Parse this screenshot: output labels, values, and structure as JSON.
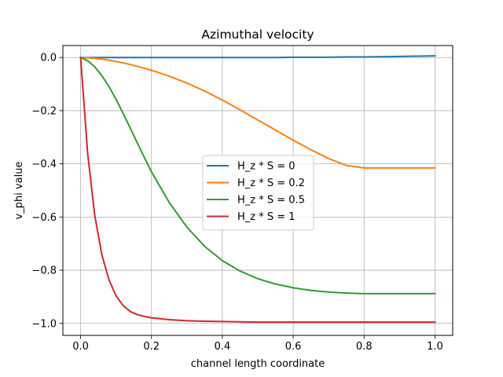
{
  "chart_data": {
    "type": "line",
    "title": "Azimuthal velocity",
    "xlabel": "channel length coordinate",
    "ylabel": "v_phi value",
    "xlim": [
      -0.05,
      1.05
    ],
    "ylim": [
      -1.045,
      0.045
    ],
    "xticks": [
      0.0,
      0.2,
      0.4,
      0.6,
      0.8,
      1.0
    ],
    "xtick_labels": [
      "0.0",
      "0.2",
      "0.4",
      "0.6",
      "0.8",
      "1.0"
    ],
    "yticks": [
      0.0,
      -0.2,
      -0.4,
      -0.6,
      -0.8,
      -1.0
    ],
    "ytick_labels": [
      "0.0",
      "−0.2",
      "−0.4",
      "−0.6",
      "−0.8",
      "−1.0"
    ],
    "grid": true,
    "legend_position": "center",
    "x": [
      0.0,
      0.02,
      0.04,
      0.06,
      0.08,
      0.1,
      0.12,
      0.14,
      0.16,
      0.18,
      0.2,
      0.25,
      0.3,
      0.35,
      0.4,
      0.45,
      0.5,
      0.55,
      0.6,
      0.65,
      0.7,
      0.75,
      0.8,
      0.85,
      0.9,
      0.95,
      1.0
    ],
    "series": [
      {
        "name": "H_z * S = 0",
        "color": "#1f77b4",
        "values": [
          0.0,
          0.0,
          0.0,
          0.0,
          0.0,
          0.0,
          0.0,
          0.0,
          0.0,
          0.0,
          0.0,
          0.0,
          0.0,
          0.0,
          0.0,
          0.0,
          0.0,
          0.0,
          0.001,
          0.001,
          0.001,
          0.002,
          0.002,
          0.003,
          0.004,
          0.005,
          0.006
        ]
      },
      {
        "name": "H_z * S = 0.2",
        "color": "#ff7f0e",
        "values": [
          0.0,
          -0.001,
          -0.003,
          -0.006,
          -0.01,
          -0.015,
          -0.02,
          -0.026,
          -0.033,
          -0.04,
          -0.048,
          -0.07,
          -0.096,
          -0.126,
          -0.16,
          -0.197,
          -0.235,
          -0.273,
          -0.311,
          -0.347,
          -0.38,
          -0.406,
          -0.415,
          -0.415,
          -0.415,
          -0.415,
          -0.415
        ]
      },
      {
        "name": "H_z * S = 0.5",
        "color": "#2ca02c",
        "values": [
          0.0,
          -0.012,
          -0.035,
          -0.068,
          -0.109,
          -0.157,
          -0.21,
          -0.265,
          -0.321,
          -0.376,
          -0.43,
          -0.545,
          -0.638,
          -0.71,
          -0.764,
          -0.803,
          -0.832,
          -0.852,
          -0.866,
          -0.876,
          -0.882,
          -0.886,
          -0.888,
          -0.888,
          -0.888,
          -0.888,
          -0.888
        ]
      },
      {
        "name": "H_z * S = 1",
        "color": "#d62728",
        "values": [
          0.0,
          -0.362,
          -0.594,
          -0.742,
          -0.836,
          -0.896,
          -0.933,
          -0.955,
          -0.967,
          -0.974,
          -0.979,
          -0.986,
          -0.99,
          -0.992,
          -0.993,
          -0.994,
          -0.995,
          -0.995,
          -0.995,
          -0.995,
          -0.995,
          -0.995,
          -0.995,
          -0.995,
          -0.995,
          -0.995,
          -0.995
        ]
      }
    ]
  }
}
